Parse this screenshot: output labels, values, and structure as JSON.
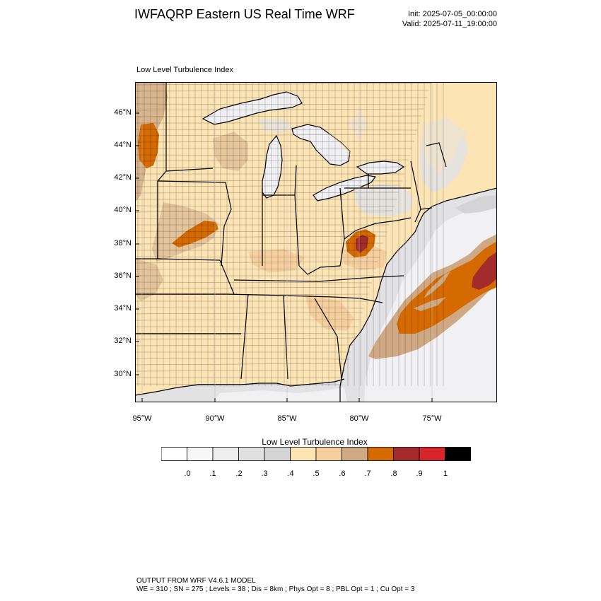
{
  "header": {
    "title": "IWFAQRP Eastern US Real Time WRF",
    "init": "Init: 2025-07-05_00:00:00",
    "valid": "Valid: 2025-07-11_19:00:00"
  },
  "map": {
    "subtitle": "Low Level Turbulence Index",
    "lat_labels": [
      "46°N",
      "44°N",
      "42°N",
      "40°N",
      "38°N",
      "36°N",
      "34°N",
      "32°N",
      "30°N"
    ],
    "lon_labels": [
      "95°W",
      "90°W",
      "85°W",
      "80°W",
      "75°W"
    ],
    "colors": {
      "land_base": "#fde4b5",
      "land_mid": "#f5d09e",
      "tan": "#cfa983",
      "orange": "#d46a00",
      "brown_red": "#a32b2b",
      "water_light": "#f1f1f3",
      "water_mid": "#e2e2e4",
      "water_dark": "#d4d4d6"
    }
  },
  "colorbar": {
    "title": "Low Level Turbulence Index",
    "colors": [
      "#ffffff",
      "#f7f7f7",
      "#eeeeee",
      "#e0e0e0",
      "#d4d4d4",
      "#fde4b5",
      "#f5d09e",
      "#cfa983",
      "#d46a00",
      "#a32b2b",
      "#d7262b",
      "#000000"
    ],
    "labels": [
      ".0",
      ".1",
      ".2",
      ".3",
      ".4",
      ".5",
      ".6",
      ".7",
      ".8",
      ".9",
      "1"
    ]
  },
  "footer": {
    "line1": "OUTPUT FROM WRF V4.6.1 MODEL",
    "line2": "WE = 310 ; SN = 275 ; Levels = 38 ; Dis = 8km ; Phys Opt = 8 ; PBL Opt = 1 ; Cu Opt = 3"
  }
}
